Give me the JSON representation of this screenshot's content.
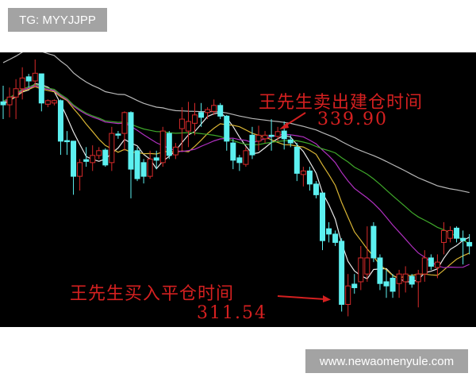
{
  "watermarks": {
    "top_left": "TG: MYYJJPP",
    "bottom_right": "www.newaomenyule.com"
  },
  "chart_data": {
    "type": "candlestick",
    "title": "",
    "xlabel": "",
    "ylabel": "",
    "ylim": [
      307.1,
      353.2
    ],
    "grid": false,
    "background": "#000000",
    "up_color": "#d82a2a",
    "down_color": "#5cf0f0",
    "moving_average_colors": [
      "#e8e8e8",
      "#d9b534",
      "#b030c0",
      "#3fa82a",
      "#b8b8b8"
    ],
    "candles_ohlc": [
      [
        344.9,
        347.6,
        342,
        344.4
      ],
      [
        344.4,
        347.3,
        342.3,
        345.7
      ],
      [
        345.7,
        348.7,
        342,
        347.1
      ],
      [
        347.1,
        350.7,
        345.3,
        348.9
      ],
      [
        349.1,
        349.6,
        347.3,
        348.4
      ],
      [
        348.4,
        352,
        347.3,
        349.7
      ],
      [
        349.6,
        349.6,
        343.3,
        344.7
      ],
      [
        344.5,
        345.3,
        344,
        345.1
      ],
      [
        344.7,
        345.3,
        344.3,
        345.1
      ],
      [
        345.1,
        345.3,
        336,
        338.3
      ],
      [
        338.4,
        340,
        336,
        338.3
      ],
      [
        338.3,
        338.3,
        329.3,
        332.4
      ],
      [
        332.4,
        335.3,
        330,
        334.7
      ],
      [
        335.2,
        337.3,
        334,
        334.9
      ],
      [
        334.7,
        337.6,
        333.3,
        335.9
      ],
      [
        335.9,
        337.3,
        335.3,
        336.7
      ],
      [
        336.8,
        337.1,
        334,
        334.3
      ],
      [
        334.7,
        340.7,
        333.3,
        339.6
      ],
      [
        339.5,
        340,
        338.7,
        339.3
      ],
      [
        339.6,
        343.3,
        336.7,
        343.1
      ],
      [
        343.1,
        343.3,
        328.7,
        333.6
      ],
      [
        336.7,
        337.3,
        331.6,
        332
      ],
      [
        334.7,
        335.3,
        331.2,
        332.4
      ],
      [
        332.4,
        336.7,
        332,
        335.3
      ],
      [
        335.5,
        336.7,
        333.6,
        335.1
      ],
      [
        334.7,
        340.7,
        334,
        340
      ],
      [
        339.6,
        340,
        335.3,
        335.9
      ],
      [
        336,
        338,
        335.3,
        337.3
      ],
      [
        340.4,
        344,
        336.7,
        342
      ],
      [
        340,
        344.9,
        337.3,
        341.6
      ],
      [
        341.3,
        344.7,
        339.3,
        342.7
      ],
      [
        343.1,
        344.7,
        340.7,
        342.3
      ],
      [
        343.1,
        344,
        342,
        343.6
      ],
      [
        343.3,
        345.3,
        342.7,
        344.3
      ],
      [
        344.3,
        344.7,
        342,
        342.5
      ],
      [
        342.5,
        342.7,
        336.7,
        338.3
      ],
      [
        338,
        338.7,
        333.6,
        335.1
      ],
      [
        335.5,
        336,
        333.3,
        334.7
      ],
      [
        334.4,
        337.3,
        334,
        336.7
      ],
      [
        339.3,
        340.7,
        335.3,
        336
      ],
      [
        338.3,
        340.9,
        336.7,
        339.3
      ],
      [
        338.7,
        340,
        338,
        339.3
      ],
      [
        339.3,
        342,
        336.7,
        339.1
      ],
      [
        339.1,
        340.7,
        338.3,
        339.9
      ],
      [
        340,
        341.6,
        336.9,
        338.7
      ],
      [
        338.5,
        339.3,
        337.3,
        338
      ],
      [
        337.3,
        338,
        331.6,
        332.9
      ],
      [
        332.7,
        334,
        330.7,
        333.3
      ],
      [
        333.3,
        334,
        330,
        331.1
      ],
      [
        331.1,
        331.6,
        328.7,
        329.3
      ],
      [
        329.6,
        329.6,
        320,
        321.6
      ],
      [
        323.6,
        324.7,
        321.3,
        322.7
      ],
      [
        322.7,
        323.3,
        320.7,
        321.3
      ],
      [
        321.5,
        322,
        309.7,
        310.9
      ],
      [
        310.9,
        316,
        308.9,
        314
      ],
      [
        314.3,
        316,
        312.7,
        313.7
      ],
      [
        314.7,
        320.7,
        313.3,
        318.7
      ],
      [
        316,
        324,
        314.7,
        318.7
      ],
      [
        324,
        324.7,
        318,
        318.7
      ],
      [
        318.7,
        319.3,
        313.3,
        314.4
      ],
      [
        314.7,
        316.7,
        312,
        314
      ],
      [
        315.3,
        316,
        312,
        313.1
      ],
      [
        314.4,
        316.7,
        312,
        316
      ],
      [
        314.7,
        317.3,
        312.9,
        316
      ],
      [
        315.6,
        316,
        313.7,
        314.3
      ],
      [
        314.7,
        316.7,
        310.4,
        316
      ],
      [
        316,
        320,
        314.7,
        318.7
      ],
      [
        318.7,
        319.3,
        316.7,
        317.3
      ],
      [
        317.1,
        319.3,
        315.3,
        318
      ],
      [
        321.3,
        324.7,
        319.3,
        323.3
      ],
      [
        322,
        324,
        321.3,
        323.3
      ],
      [
        323.7,
        324,
        321.3,
        322
      ],
      [
        322,
        323.3,
        317.6,
        321.6
      ],
      [
        321.3,
        322.7,
        319.3,
        320.7
      ]
    ],
    "annotations": [
      {
        "text": "王先生卖出建仓时间",
        "price_label": "339.90"
      },
      {
        "text": "王先生买入平仓时间",
        "price_label": "311.54"
      }
    ]
  }
}
